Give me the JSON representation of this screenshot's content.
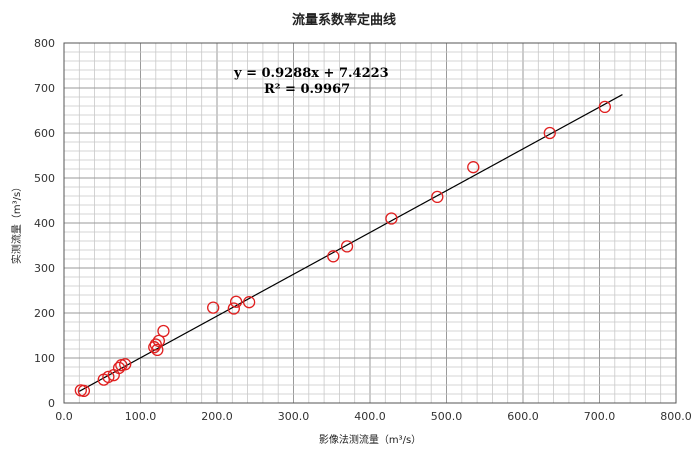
{
  "chart_data": {
    "type": "scatter",
    "title": "流量系数率定曲线",
    "xlabel": "影像法测流量（m³/s）",
    "ylabel": "实测流量（m³/s）",
    "xlim": [
      0,
      800
    ],
    "ylim": [
      0,
      800
    ],
    "x_ticks": [
      "0.0",
      "100.0",
      "200.0",
      "300.0",
      "400.0",
      "500.0",
      "600.0",
      "700.0",
      "800.0"
    ],
    "y_ticks": [
      "0",
      "100",
      "200",
      "300",
      "400",
      "500",
      "600",
      "700",
      "800"
    ],
    "grid": true,
    "marker_color": "#e02020",
    "line_color": "#000000",
    "points": [
      {
        "x": 22,
        "y": 28
      },
      {
        "x": 26,
        "y": 27
      },
      {
        "x": 52,
        "y": 52
      },
      {
        "x": 58,
        "y": 58
      },
      {
        "x": 65,
        "y": 62
      },
      {
        "x": 72,
        "y": 78
      },
      {
        "x": 75,
        "y": 84
      },
      {
        "x": 80,
        "y": 86
      },
      {
        "x": 118,
        "y": 124
      },
      {
        "x": 120,
        "y": 130
      },
      {
        "x": 122,
        "y": 118
      },
      {
        "x": 124,
        "y": 138
      },
      {
        "x": 130,
        "y": 160
      },
      {
        "x": 195,
        "y": 212
      },
      {
        "x": 222,
        "y": 210
      },
      {
        "x": 225,
        "y": 225
      },
      {
        "x": 242,
        "y": 224
      },
      {
        "x": 352,
        "y": 326
      },
      {
        "x": 370,
        "y": 348
      },
      {
        "x": 428,
        "y": 410
      },
      {
        "x": 488,
        "y": 458
      },
      {
        "x": 535,
        "y": 524
      },
      {
        "x": 635,
        "y": 600
      },
      {
        "x": 707,
        "y": 658
      }
    ],
    "trendline": {
      "slope": 0.9288,
      "intercept": 7.4223,
      "x_range": [
        20,
        730
      ],
      "equation": "y = 0.9288x + 7.4223",
      "r_squared": "R² = 0.9967"
    }
  }
}
